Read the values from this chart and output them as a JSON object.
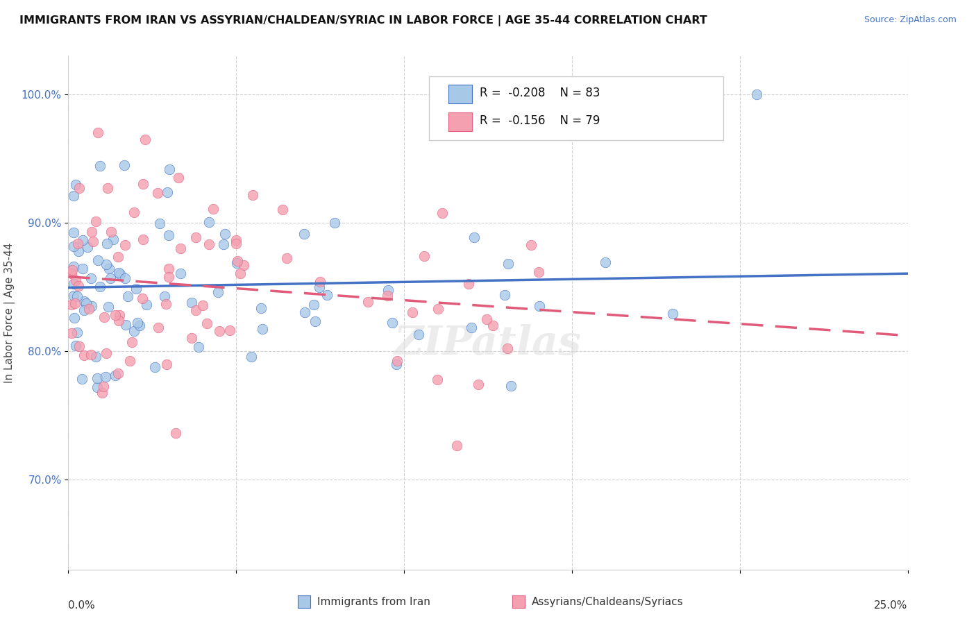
{
  "title": "IMMIGRANTS FROM IRAN VS ASSYRIAN/CHALDEAN/SYRIAC IN LABOR FORCE | AGE 35-44 CORRELATION CHART",
  "source": "Source: ZipAtlas.com",
  "ylabel": "In Labor Force | Age 35-44",
  "xlim": [
    0.0,
    25.0
  ],
  "ylim": [
    63.0,
    103.0
  ],
  "ytick_vals": [
    70.0,
    80.0,
    90.0,
    100.0
  ],
  "ytick_labels": [
    "70.0%",
    "80.0%",
    "90.0%",
    "100.0%"
  ],
  "legend_r1": "-0.208",
  "legend_n1": "83",
  "legend_r2": "-0.156",
  "legend_n2": "79",
  "color_iran": "#a8c8e8",
  "color_assyrian": "#f4a0b0",
  "edge_iran": "#4472c4",
  "edge_assyrian": "#e06080",
  "trend_color_iran": "#4472c4",
  "trend_color_assyrian": "#e05a7a",
  "watermark": "ZIPatlas"
}
